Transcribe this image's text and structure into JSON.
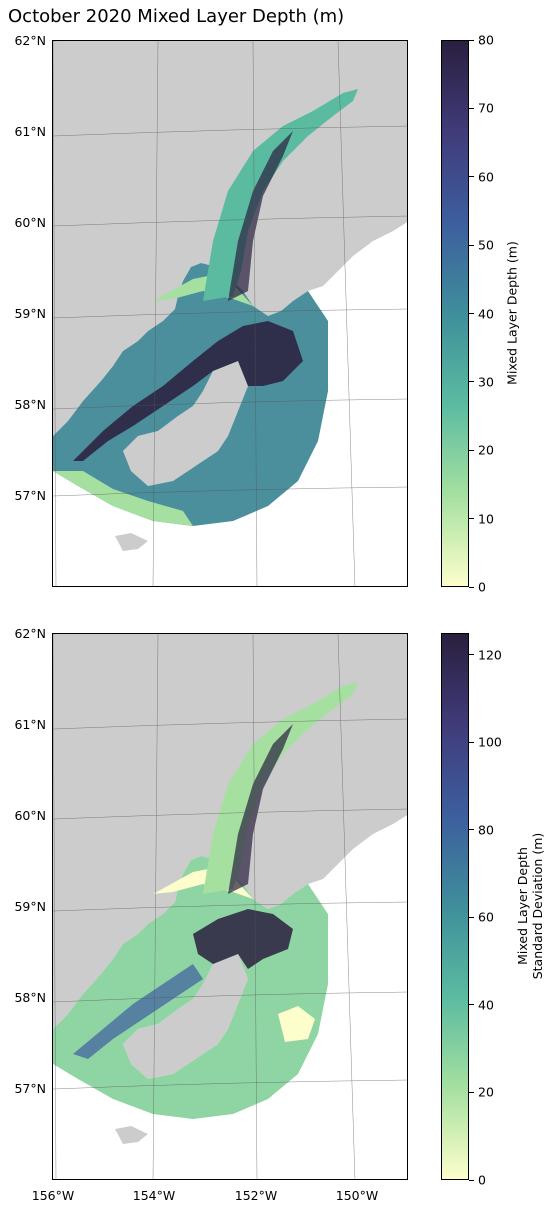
{
  "title": "October 2020 Mixed Layer Depth (m)",
  "lat_labels": [
    "62°N",
    "61°N",
    "60°N",
    "59°N",
    "58°N",
    "57°N"
  ],
  "lon_labels": [
    "156°W",
    "154°W",
    "152°W",
    "150°W"
  ],
  "panels": [
    {
      "name": "mean",
      "colorbar": {
        "label": "Mixed Layer Depth (m)",
        "ticks": [
          "0",
          "10",
          "20",
          "30",
          "40",
          "50",
          "60",
          "70",
          "80"
        ],
        "min": 0,
        "max": 80
      }
    },
    {
      "name": "std",
      "colorbar": {
        "label_line1": "Mixed Layer Depth",
        "label_line2": "Standard Deviation (m)",
        "ticks": [
          "0",
          "20",
          "40",
          "60",
          "80",
          "100",
          "120"
        ],
        "min": 0,
        "max": 125
      }
    }
  ],
  "colors": {
    "land": "#cccccc",
    "cmap": [
      "#fdfecc",
      "#a5e0a0",
      "#5bbba0",
      "#3f8e9b",
      "#3d5e9e",
      "#403b7a",
      "#2a1f3e"
    ]
  }
}
